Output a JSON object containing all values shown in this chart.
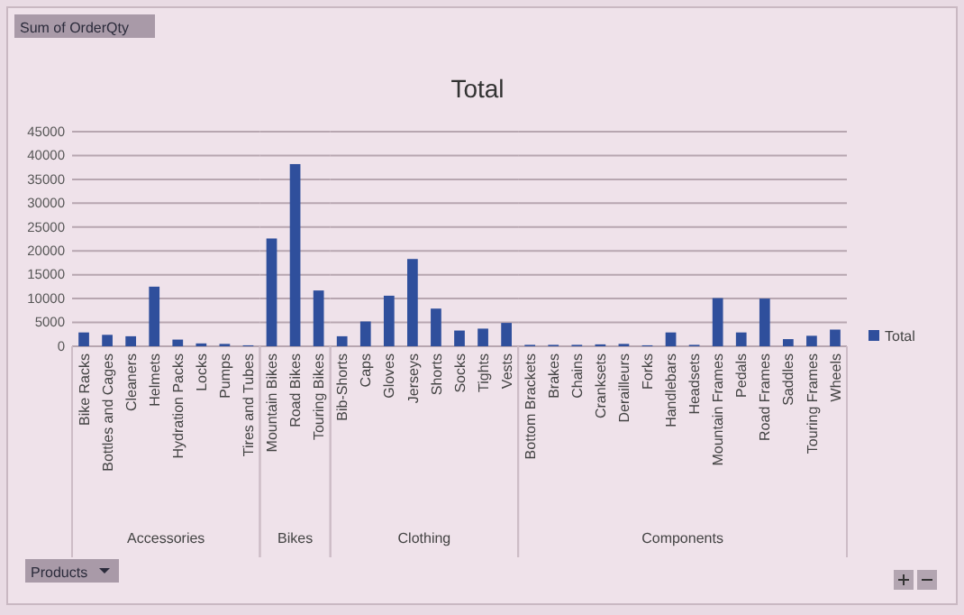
{
  "chart_data": [
    {
      "type": "bar",
      "xlabel": "Accessories",
      "annotations": [
        "Sum of OrderQty",
        "Products"
      ],
      "categories": [
        "Bike Racks",
        "Bottles and Cages",
        "Cleaners",
        "Helmets",
        "Hydration Packs",
        "Locks",
        "Pumps",
        "Tires and Tubes"
      ],
      "series": [
        {
          "color": "#2f4f9c",
          "values": [
            2900,
            2400,
            2100,
            12500,
            1400,
            600,
            500,
            200
          ]
        }
      ],
      "ylim": [
        0,
        45000
      ],
      "yticks": [
        0,
        5000,
        10000,
        15000,
        20000,
        25000,
        30000,
        35000,
        40000,
        45000
      ],
      "grid": "y"
    },
    {
      "type": "bar",
      "xlabel": "Bikes",
      "categories": [
        "Mountain Bikes",
        "Road Bikes",
        "Touring Bikes"
      ],
      "series": [
        {
          "color": "#2f4f9c",
          "values": [
            22600,
            38200,
            11700
          ]
        }
      ],
      "ylim": [
        0,
        45000
      ],
      "yticks": [
        0,
        5000,
        10000,
        15000,
        20000,
        25000,
        30000,
        35000,
        40000,
        45000
      ],
      "grid": "y",
      "tick_labels": "x"
    },
    {
      "type": "bar",
      "title": "Total",
      "xlabel": "Clothing",
      "categories": [
        "Bib-Shorts",
        "Caps",
        "Gloves",
        "Jerseys",
        "Shorts",
        "Socks",
        "Tights",
        "Vests"
      ],
      "series": [
        {
          "color": "#2f4f9c",
          "values": [
            2100,
            5200,
            10600,
            18300,
            7900,
            3300,
            3700,
            4900
          ]
        }
      ],
      "ylim": [
        0,
        45000
      ],
      "yticks": [
        0,
        5000,
        10000,
        15000,
        20000,
        25000,
        30000,
        35000,
        40000,
        45000
      ],
      "grid": "y",
      "tick_labels": "x"
    },
    {
      "type": "bar",
      "xlabel": "Components",
      "categories": [
        "Bottom Brackets",
        "Brakes",
        "Chains",
        "Cranksets",
        "Derailleurs",
        "Forks",
        "Handlebars",
        "Headsets",
        "Mountain Frames",
        "Pedals",
        "Road Frames",
        "Saddles",
        "Touring Frames",
        "Wheels"
      ],
      "series": [
        {
          "name": "Total",
          "color": "#2f4f9c",
          "values": [
            300,
            300,
            300,
            400,
            500,
            200,
            2900,
            300,
            10100,
            2900,
            10000,
            1500,
            2200,
            3500
          ]
        }
      ],
      "ylim": [
        0,
        45000
      ],
      "yticks": [
        0,
        5000,
        10000,
        15000,
        20000,
        25000,
        30000,
        35000,
        40000,
        45000
      ],
      "grid": "y",
      "tick_labels": "x",
      "legend": "right"
    }
  ]
}
